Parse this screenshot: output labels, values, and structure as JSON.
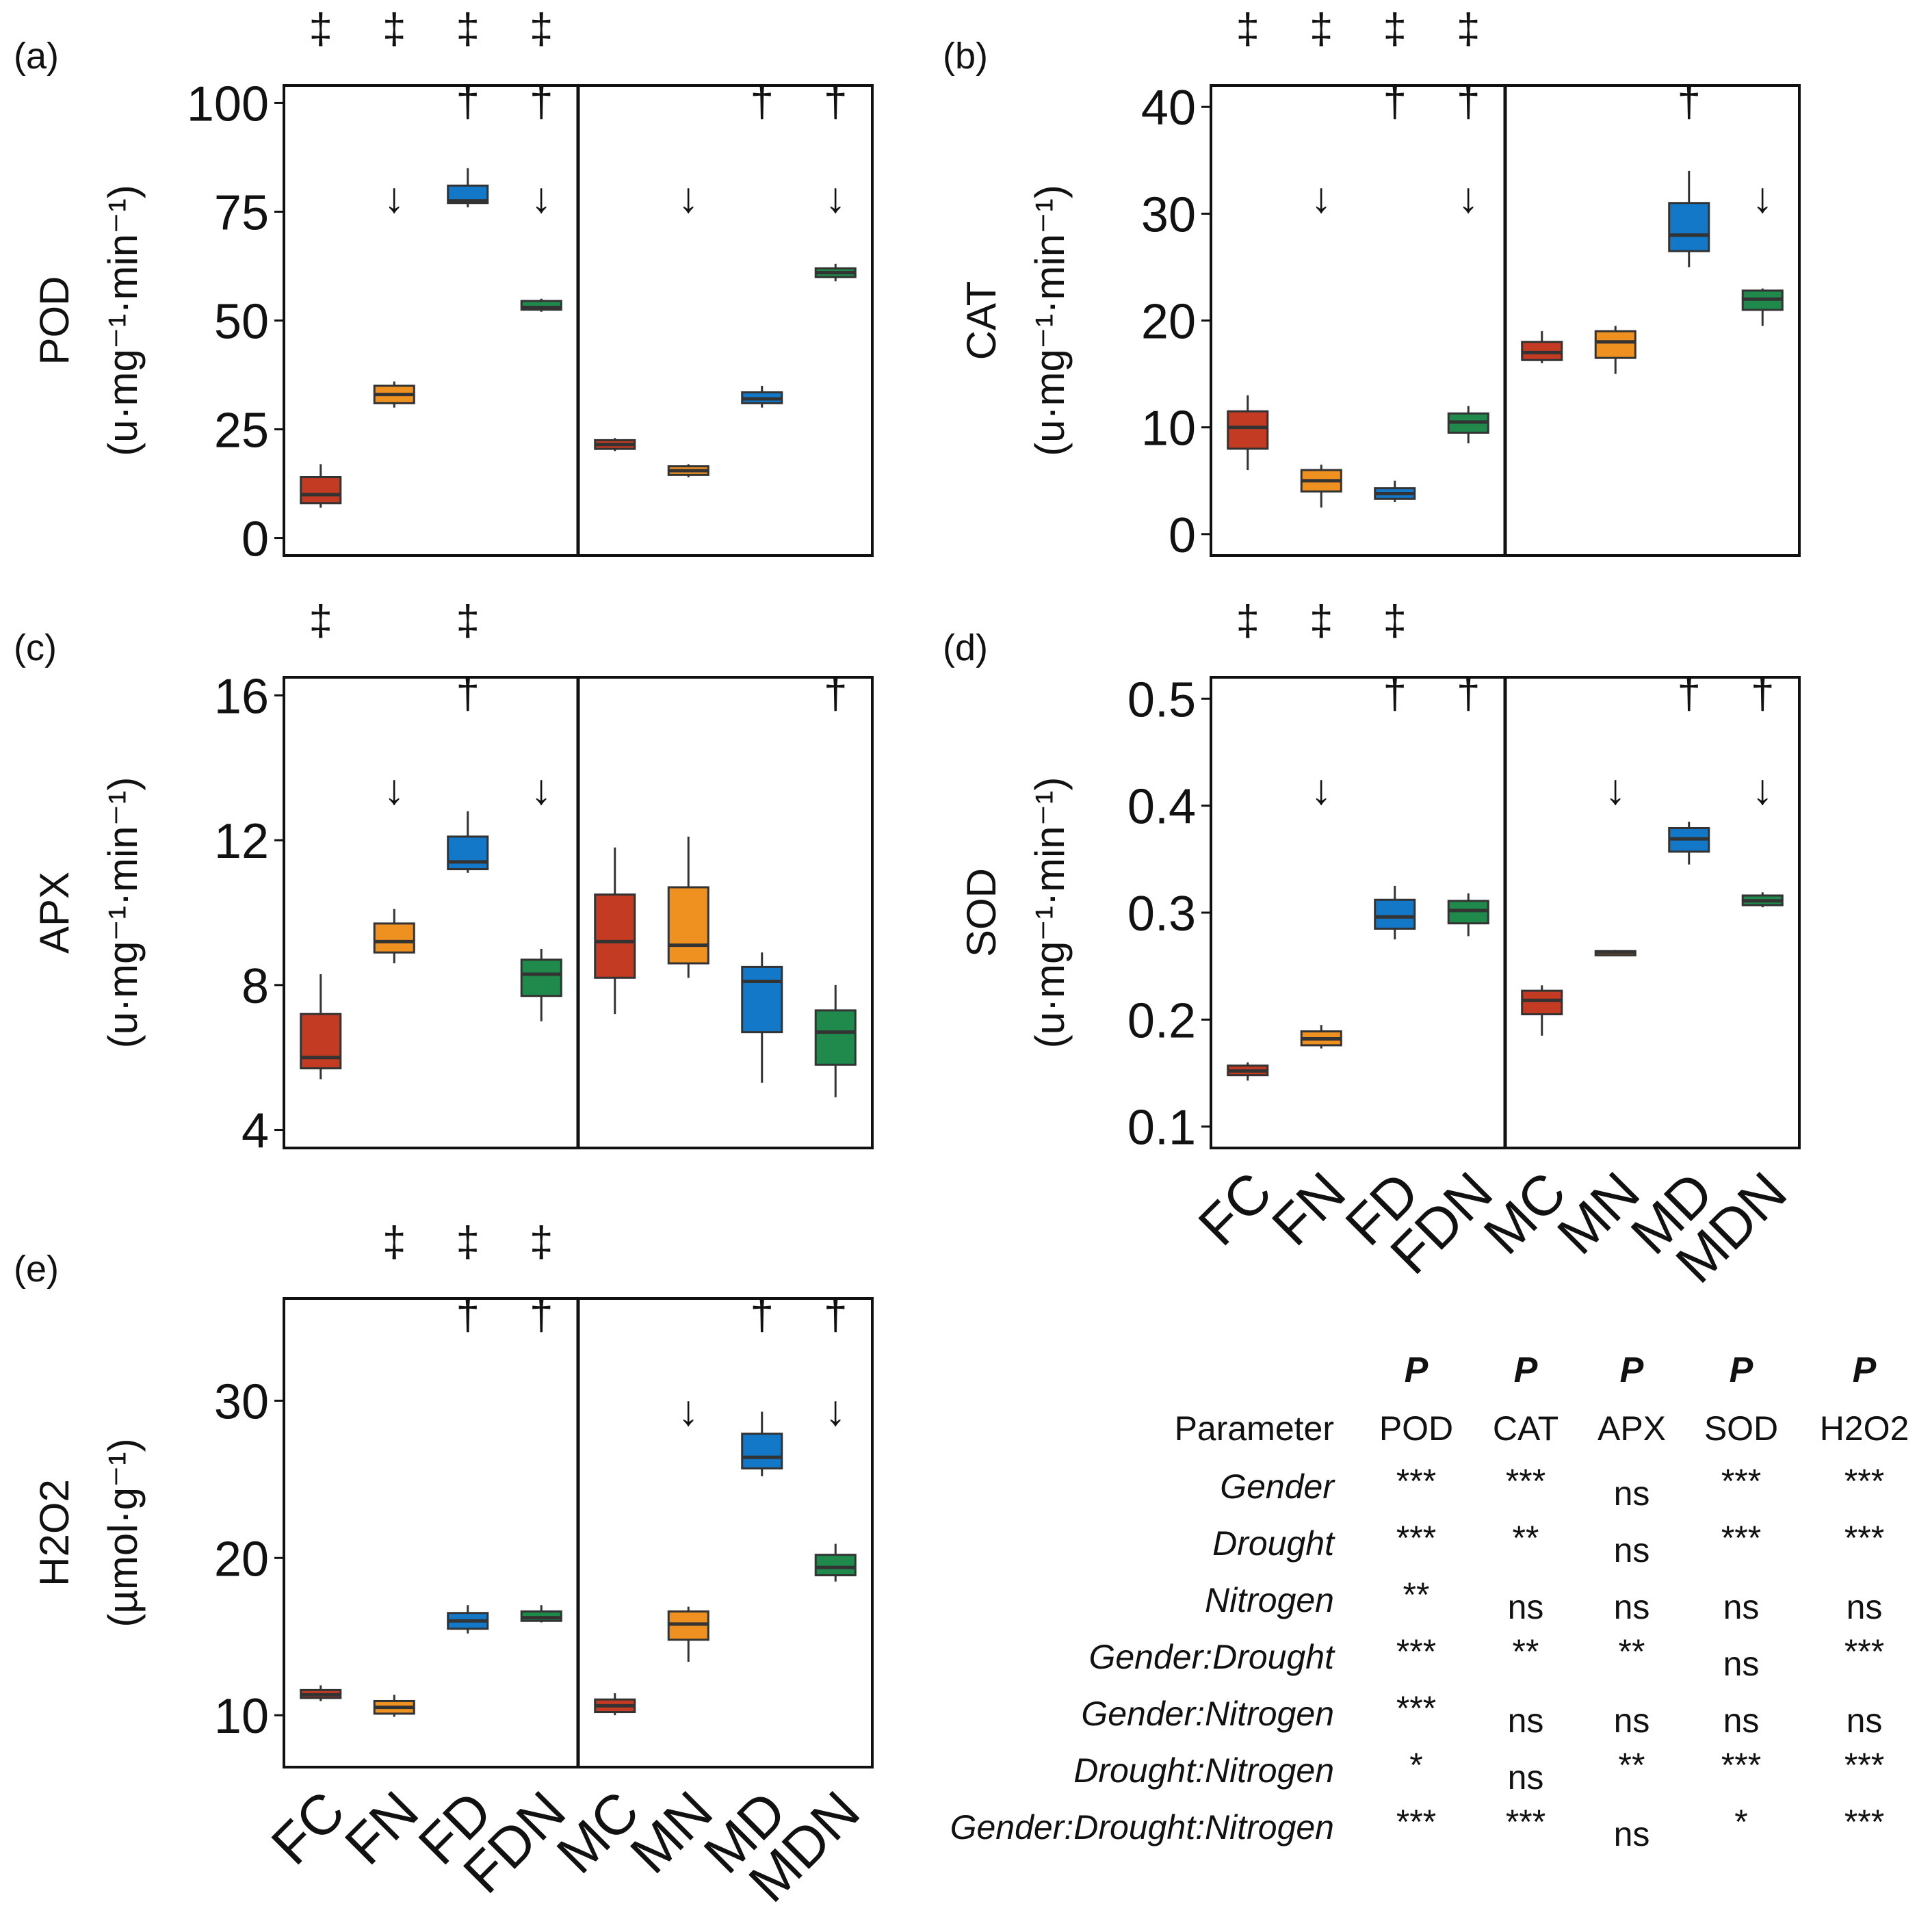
{
  "chart_data": [
    {
      "type": "box",
      "panel": "(a)",
      "ylabel": "POD",
      "yunit": "(u·mg⁻¹·min⁻¹)",
      "ylim": [
        -4,
        104
      ],
      "yticks": [
        "0",
        "25",
        "50",
        "75",
        "100"
      ],
      "ytick_values": [
        0,
        25,
        50,
        75,
        100
      ],
      "categories": [
        "FC",
        "FN",
        "FD",
        "FDN",
        "MC",
        "MN",
        "MD",
        "MDN"
      ],
      "boxes": [
        {
          "min": 7,
          "q1": 8,
          "median": 10,
          "q3": 14,
          "max": 17
        },
        {
          "min": 30,
          "q1": 31,
          "median": 33,
          "q3": 35,
          "max": 36
        },
        {
          "min": 76,
          "q1": 77,
          "median": 77.5,
          "q3": 81,
          "max": 85
        },
        {
          "min": 52,
          "q1": 52.5,
          "median": 53,
          "q3": 54.5,
          "max": 55
        },
        {
          "min": 20,
          "q1": 20.5,
          "median": 21.5,
          "q3": 22.5,
          "max": 23
        },
        {
          "min": 14,
          "q1": 14.5,
          "median": 15.5,
          "q3": 16.5,
          "max": 17
        },
        {
          "min": 30,
          "q1": 31,
          "median": 32,
          "q3": 33.5,
          "max": 35
        },
        {
          "min": 59,
          "q1": 60,
          "median": 61,
          "q3": 62,
          "max": 63
        }
      ],
      "marks": [
        [
          "‡",
          "",
          "",
          "‡",
          "",
          "",
          "",
          ""
        ],
        [
          "‡",
          "",
          "",
          "",
          "",
          "",
          "",
          ""
        ]
      ],
      "sig_marks": [
        [
          "‡",
          "‡",
          "‡",
          "‡",
          "",
          "",
          "",
          ""
        ],
        [
          "",
          "",
          "†",
          "†",
          "",
          "",
          "†",
          "†"
        ],
        [
          "",
          "↓",
          "",
          "↓",
          "",
          "↓",
          "",
          "↓"
        ]
      ]
    },
    {
      "type": "box",
      "panel": "(b)",
      "ylabel": "CAT",
      "yunit": "(u·mg⁻¹·min⁻¹)",
      "ylim": [
        -2,
        42
      ],
      "yticks": [
        "0",
        "10",
        "20",
        "30",
        "40"
      ],
      "ytick_values": [
        0,
        10,
        20,
        30,
        40
      ],
      "categories": [
        "FC",
        "FN",
        "FD",
        "FDN",
        "MC",
        "MN",
        "MD",
        "MDN"
      ],
      "boxes": [
        {
          "min": 6,
          "q1": 8,
          "median": 10,
          "q3": 11.5,
          "max": 13
        },
        {
          "min": 2.5,
          "q1": 4,
          "median": 5,
          "q3": 6,
          "max": 6.5
        },
        {
          "min": 3,
          "q1": 3.3,
          "median": 3.8,
          "q3": 4.3,
          "max": 5
        },
        {
          "min": 8.5,
          "q1": 9.5,
          "median": 10.5,
          "q3": 11.3,
          "max": 12
        },
        {
          "min": 16,
          "q1": 16.3,
          "median": 17,
          "q3": 18,
          "max": 19
        },
        {
          "min": 15,
          "q1": 16.5,
          "median": 18,
          "q3": 19,
          "max": 19.5
        },
        {
          "min": 25,
          "q1": 26.5,
          "median": 28,
          "q3": 31,
          "max": 34
        },
        {
          "min": 19.5,
          "q1": 21,
          "median": 22,
          "q3": 22.8,
          "max": 23
        }
      ],
      "sig_marks": [
        [
          "‡",
          "‡",
          "‡",
          "‡",
          "",
          "",
          "",
          ""
        ],
        [
          "",
          "",
          "†",
          "†",
          "",
          "",
          "†",
          ""
        ],
        [
          "",
          "↓",
          "",
          "↓",
          "",
          "",
          "",
          "↓"
        ]
      ]
    },
    {
      "type": "box",
      "panel": "(c)",
      "ylabel": "APX",
      "yunit": "(u·mg⁻¹·min⁻¹)",
      "ylim": [
        3.5,
        16.5
      ],
      "yticks": [
        "4",
        "8",
        "12",
        "16"
      ],
      "ytick_values": [
        4,
        8,
        12,
        16
      ],
      "categories": [
        "FC",
        "FN",
        "FD",
        "FDN",
        "MC",
        "MN",
        "MD",
        "MDN"
      ],
      "boxes": [
        {
          "min": 5.4,
          "q1": 5.7,
          "median": 6.0,
          "q3": 7.2,
          "max": 8.3
        },
        {
          "min": 8.6,
          "q1": 8.9,
          "median": 9.2,
          "q3": 9.7,
          "max": 10.1
        },
        {
          "min": 11.1,
          "q1": 11.2,
          "median": 11.4,
          "q3": 12.1,
          "max": 12.8
        },
        {
          "min": 7.0,
          "q1": 7.7,
          "median": 8.3,
          "q3": 8.7,
          "max": 9.0
        },
        {
          "min": 7.2,
          "q1": 8.2,
          "median": 9.2,
          "q3": 10.5,
          "max": 11.8
        },
        {
          "min": 8.2,
          "q1": 8.6,
          "median": 9.1,
          "q3": 10.7,
          "max": 12.1
        },
        {
          "min": 5.3,
          "q1": 6.7,
          "median": 8.1,
          "q3": 8.5,
          "max": 8.9
        },
        {
          "min": 4.9,
          "q1": 5.8,
          "median": 6.7,
          "q3": 7.3,
          "max": 8.0
        }
      ],
      "sig_marks": [
        [
          "‡",
          "",
          "‡",
          "",
          "",
          "",
          "",
          ""
        ],
        [
          "",
          "",
          "†",
          "",
          "",
          "",
          "",
          "†"
        ],
        [
          "",
          "↓",
          "",
          "↓",
          "",
          "",
          "",
          ""
        ]
      ]
    },
    {
      "type": "box",
      "panel": "(d)",
      "ylabel": "SOD",
      "yunit": "(u·mg⁻¹·min⁻¹)",
      "ylim": [
        0.08,
        0.52
      ],
      "yticks": [
        "0.1",
        "0.2",
        "0.3",
        "0.4",
        "0.5"
      ],
      "ytick_values": [
        0.1,
        0.2,
        0.3,
        0.4,
        0.5
      ],
      "categories": [
        "FC",
        "FN",
        "FD",
        "FDN",
        "MC",
        "MN",
        "MD",
        "MDN"
      ],
      "boxes": [
        {
          "min": 0.143,
          "q1": 0.148,
          "median": 0.152,
          "q3": 0.157,
          "max": 0.16
        },
        {
          "min": 0.173,
          "q1": 0.176,
          "median": 0.182,
          "q3": 0.189,
          "max": 0.195
        },
        {
          "min": 0.275,
          "q1": 0.285,
          "median": 0.296,
          "q3": 0.312,
          "max": 0.325
        },
        {
          "min": 0.278,
          "q1": 0.29,
          "median": 0.302,
          "q3": 0.311,
          "max": 0.318
        },
        {
          "min": 0.185,
          "q1": 0.205,
          "median": 0.218,
          "q3": 0.227,
          "max": 0.232
        },
        {
          "min": 0.261,
          "q1": 0.262,
          "median": 0.263,
          "q3": 0.264,
          "max": 0.265
        },
        {
          "min": 0.345,
          "q1": 0.357,
          "median": 0.369,
          "q3": 0.379,
          "max": 0.385
        },
        {
          "min": 0.305,
          "q1": 0.307,
          "median": 0.311,
          "q3": 0.316,
          "max": 0.319
        }
      ],
      "sig_marks": [
        [
          "‡",
          "‡",
          "‡",
          "",
          "",
          "",
          "",
          ""
        ],
        [
          "",
          "",
          "†",
          "†",
          "",
          "",
          "†",
          "†"
        ],
        [
          "",
          "↓",
          "",
          "",
          "",
          "↓",
          "",
          "↓"
        ]
      ]
    },
    {
      "type": "box",
      "panel": "(e)",
      "ylabel": "H2O2",
      "yunit": "(µmol·g⁻¹)",
      "ylim": [
        6.7,
        36.5
      ],
      "yticks": [
        "10",
        "20",
        "30"
      ],
      "ytick_values": [
        10,
        20,
        30
      ],
      "categories": [
        "FC",
        "FN",
        "FD",
        "FDN",
        "MC",
        "MN",
        "MD",
        "MDN"
      ],
      "boxes": [
        {
          "min": 10.9,
          "q1": 11.1,
          "median": 11.3,
          "q3": 11.6,
          "max": 11.9
        },
        {
          "min": 9.9,
          "q1": 10.1,
          "median": 10.5,
          "q3": 10.9,
          "max": 11.3
        },
        {
          "min": 15.2,
          "q1": 15.5,
          "median": 16.0,
          "q3": 16.5,
          "max": 17.0
        },
        {
          "min": 15.9,
          "q1": 16.0,
          "median": 16.2,
          "q3": 16.6,
          "max": 17.0
        },
        {
          "min": 10.0,
          "q1": 10.2,
          "median": 10.6,
          "q3": 11.0,
          "max": 11.4
        },
        {
          "min": 13.4,
          "q1": 14.8,
          "median": 15.8,
          "q3": 16.6,
          "max": 16.9
        },
        {
          "min": 25.2,
          "q1": 25.7,
          "median": 26.4,
          "q3": 27.9,
          "max": 29.3
        },
        {
          "min": 18.5,
          "q1": 18.9,
          "median": 19.4,
          "q3": 20.2,
          "max": 20.9
        }
      ],
      "sig_marks": [
        [
          "",
          "‡",
          "‡",
          "‡",
          "",
          "",
          "",
          ""
        ],
        [
          "",
          "",
          "†",
          "†",
          "",
          "",
          "†",
          "†"
        ],
        [
          "",
          "",
          "",
          "",
          "",
          "↓",
          "",
          "↓"
        ]
      ]
    }
  ],
  "x_tick_labels": [
    "FC",
    "FN",
    "FD",
    "FDN",
    "MC",
    "MN",
    "MD",
    "MDN"
  ],
  "colors": {
    "C": "#c23b22",
    "N": "#ef9121",
    "D": "#1478c8",
    "DN": "#1f8a4c",
    "median": "#333333",
    "axis": "#111111"
  },
  "table": {
    "p_label": "P",
    "param_header": "Parameter",
    "columns": [
      "POD",
      "CAT",
      "APX",
      "SOD",
      "H2O2"
    ],
    "rows": [
      {
        "name": "Gender",
        "values": [
          "***",
          "***",
          "ns",
          "***",
          "***"
        ]
      },
      {
        "name": "Drought",
        "values": [
          "***",
          "**",
          "ns",
          "***",
          "***"
        ]
      },
      {
        "name": "Nitrogen",
        "values": [
          "**",
          "ns",
          "ns",
          "ns",
          "ns"
        ]
      },
      {
        "name": "Gender:Drought",
        "values": [
          "***",
          "**",
          "**",
          "ns",
          "***"
        ]
      },
      {
        "name": "Gender:Nitrogen",
        "values": [
          "***",
          "ns",
          "ns",
          "ns",
          "ns"
        ]
      },
      {
        "name": "Drought:Nitrogen",
        "values": [
          "*",
          "ns",
          "**",
          "***",
          "***"
        ]
      },
      {
        "name": "Gender:Drought:Nitrogen",
        "values": [
          "***",
          "***",
          "ns",
          "*",
          "***"
        ]
      }
    ]
  }
}
